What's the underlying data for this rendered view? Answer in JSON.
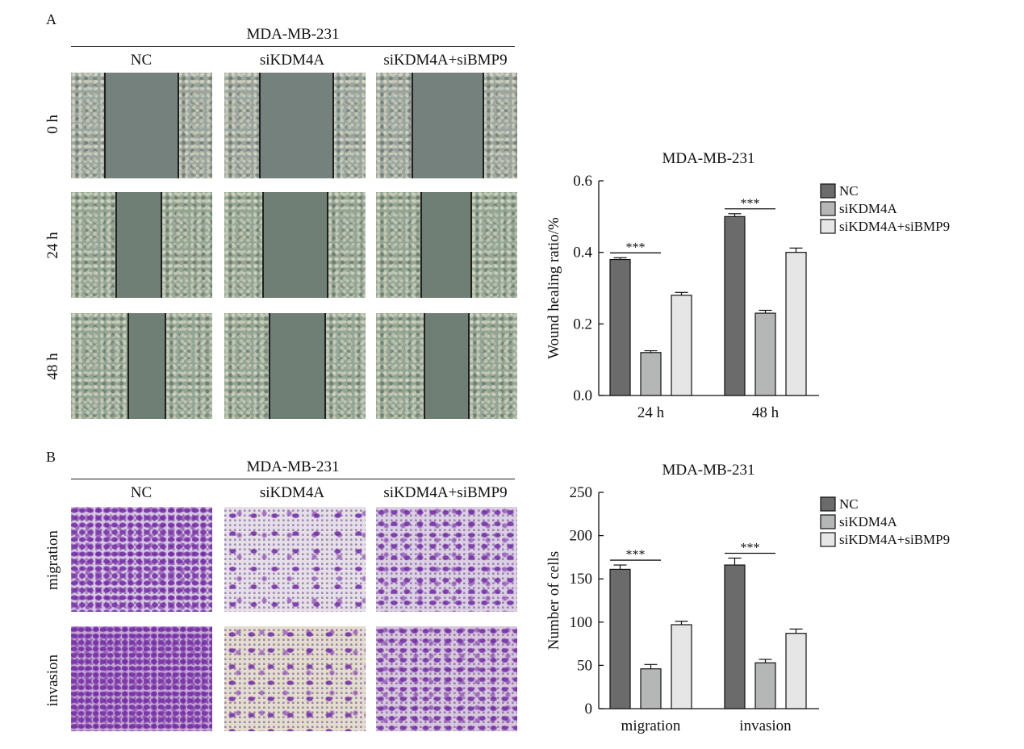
{
  "panel_a": {
    "letter": "A",
    "header": "MDA-MB-231",
    "columns": [
      "NC",
      "siKDM4A",
      "siKDM4A+siBMP9"
    ],
    "rows": [
      "0 h",
      "24 h",
      "48 h"
    ]
  },
  "panel_b": {
    "letter": "B",
    "header": "MDA-MB-231",
    "columns": [
      "NC",
      "siKDM4A",
      "siKDM4A+siBMP9"
    ],
    "rows": [
      "migration",
      "invasion"
    ]
  },
  "colors": {
    "NC": "#6b6b6b",
    "siKDM4A": "#b5b7b6",
    "siKDM4A+siBMP9": "#e6e6e6"
  },
  "chart_data": [
    {
      "type": "bar",
      "title": "MDA-MB-231",
      "ylabel": "Wound healing ratio/%",
      "xlabel": "",
      "categories": [
        "24 h",
        "48 h"
      ],
      "ylim": [
        0,
        0.6
      ],
      "yticks": [
        "0.0",
        "0.2",
        "0.4",
        "0.6"
      ],
      "ytick_values": [
        0,
        0.2,
        0.4,
        0.6
      ],
      "series": [
        {
          "name": "NC",
          "values": [
            0.38,
            0.5
          ],
          "errors": [
            0.005,
            0.008
          ]
        },
        {
          "name": "siKDM4A",
          "values": [
            0.12,
            0.23
          ],
          "errors": [
            0.005,
            0.008
          ]
        },
        {
          "name": "siKDM4A+siBMP9",
          "values": [
            0.28,
            0.4
          ],
          "errors": [
            0.008,
            0.012
          ]
        }
      ],
      "significance": "***",
      "legend": "top-right"
    },
    {
      "type": "bar",
      "title": "MDA-MB-231",
      "ylabel": "Number of cells",
      "xlabel": "",
      "categories": [
        "migration",
        "invasion"
      ],
      "ylim": [
        0,
        250
      ],
      "yticks": [
        "0",
        "50",
        "100",
        "150",
        "200",
        "250"
      ],
      "ytick_values": [
        0,
        50,
        100,
        150,
        200,
        250
      ],
      "series": [
        {
          "name": "NC",
          "values": [
            161,
            166
          ],
          "errors": [
            5,
            8
          ]
        },
        {
          "name": "siKDM4A",
          "values": [
            46,
            53
          ],
          "errors": [
            5,
            4
          ]
        },
        {
          "name": "siKDM4A+siBMP9",
          "values": [
            97,
            87
          ],
          "errors": [
            4,
            5
          ]
        }
      ],
      "significance": "***",
      "legend": "top-right"
    }
  ]
}
